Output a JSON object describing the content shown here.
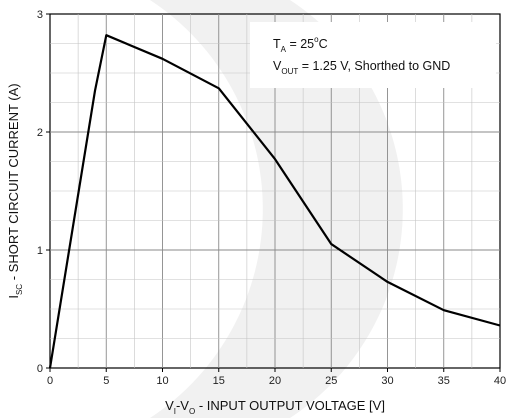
{
  "chart_data": {
    "type": "line",
    "x_ticks": [
      "0",
      "5",
      "10",
      "15",
      "20",
      "25",
      "30",
      "35",
      "40"
    ],
    "y_ticks": [
      "0",
      "1",
      "2",
      "3"
    ],
    "xlim": [
      0,
      40
    ],
    "ylim": [
      0,
      3
    ],
    "grid": true,
    "xlabel": {
      "p1": "V",
      "s1": "I",
      "p2": "-V",
      "s2": "O",
      "p3": " - INPUT OUTPUT VOLTAGE [V]"
    },
    "ylabel": {
      "p1": "I",
      "s1": "SC",
      "p2": " - SHORT CIRCUIT CURRENT (A)"
    },
    "annotations": {
      "line1": {
        "p1": "T",
        "s1": "A",
        "p2": " = 25",
        "sup": "o",
        "p3": "C"
      },
      "line2": {
        "p1": "V",
        "s1": "OUT",
        "p2": " = 1.25 V, Shorthed to GND"
      }
    },
    "series": [
      {
        "x": [
          0,
          4,
          5,
          10,
          15,
          20,
          25,
          30,
          35,
          40
        ],
        "y": [
          0,
          2.35,
          2.82,
          2.62,
          2.37,
          1.77,
          1.05,
          0.73,
          0.49,
          0.36
        ],
        "color": "#000000"
      }
    ]
  }
}
